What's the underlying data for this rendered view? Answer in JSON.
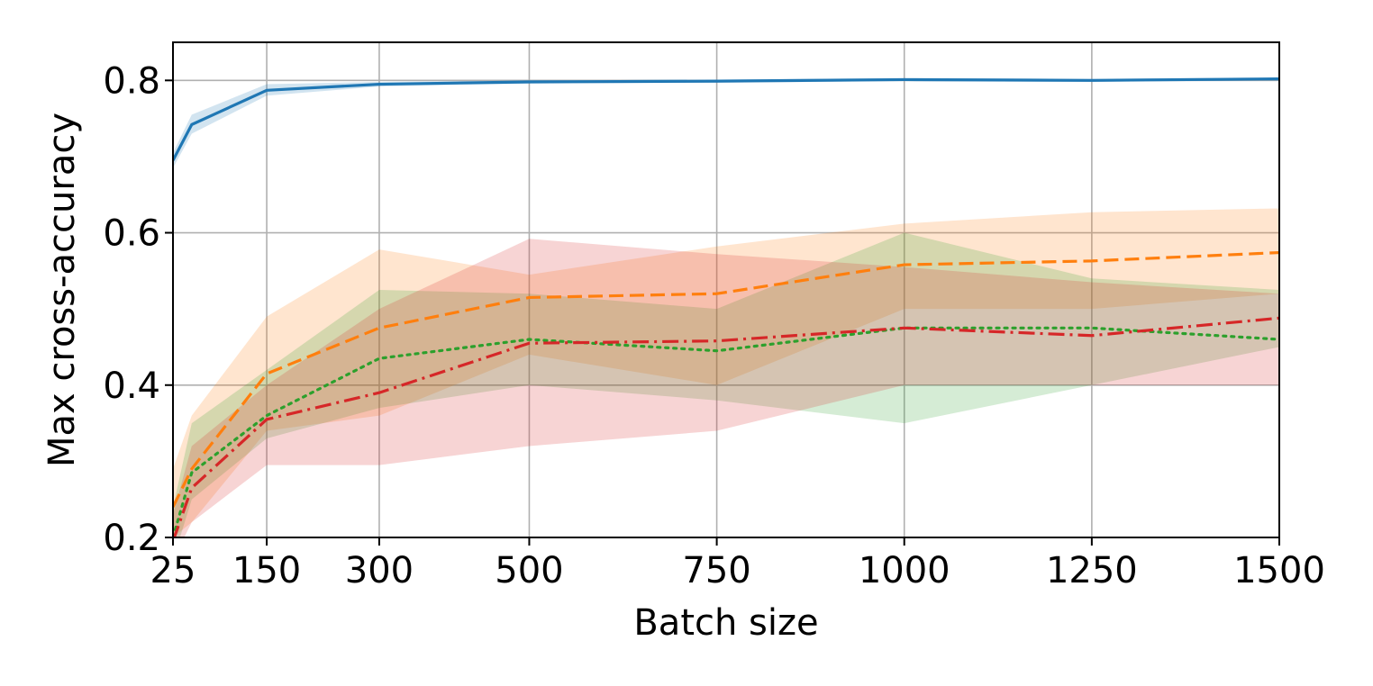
{
  "chart_data": {
    "type": "line",
    "xlabel": "Batch size",
    "ylabel": "Max cross-accuracy",
    "xlim": [
      25,
      1500
    ],
    "ylim": [
      0.2,
      0.85
    ],
    "xticks": [
      25,
      150,
      300,
      500,
      750,
      1000,
      1250,
      1500
    ],
    "xtick_labels": [
      "25",
      "150",
      "300",
      "500",
      "750",
      "1000",
      "1250",
      "1500"
    ],
    "yticks": [
      0.2,
      0.4,
      0.6,
      0.8
    ],
    "ytick_labels": [
      "0.2",
      "0.4",
      "0.6",
      "0.8"
    ],
    "grid": true,
    "x": [
      25,
      50,
      150,
      300,
      500,
      750,
      1000,
      1250,
      1500
    ],
    "series": [
      {
        "color": "#1f77b4",
        "style": "solid",
        "values": [
          0.695,
          0.742,
          0.787,
          0.795,
          0.798,
          0.799,
          0.801,
          0.8,
          0.802
        ],
        "lower": [
          0.685,
          0.73,
          0.78,
          0.792,
          0.796,
          0.797,
          0.799,
          0.798,
          0.8
        ],
        "upper": [
          0.705,
          0.755,
          0.795,
          0.798,
          0.8,
          0.801,
          0.803,
          0.802,
          0.804
        ]
      },
      {
        "color": "#ff7f0e",
        "style": "dashed",
        "values": [
          0.24,
          0.29,
          0.415,
          0.475,
          0.515,
          0.52,
          0.558,
          0.563,
          0.574
        ],
        "lower": [
          0.2,
          0.22,
          0.34,
          0.36,
          0.44,
          0.4,
          0.5,
          0.5,
          0.52
        ],
        "upper": [
          0.29,
          0.36,
          0.49,
          0.578,
          0.545,
          0.582,
          0.612,
          0.627,
          0.632
        ]
      },
      {
        "color": "#2ca02c",
        "style": "dotted",
        "values": [
          0.2,
          0.285,
          0.36,
          0.435,
          0.46,
          0.445,
          0.475,
          0.475,
          0.46
        ],
        "lower": [
          0.17,
          0.25,
          0.33,
          0.37,
          0.4,
          0.38,
          0.35,
          0.4,
          0.45
        ],
        "upper": [
          0.24,
          0.35,
          0.42,
          0.525,
          0.52,
          0.5,
          0.6,
          0.54,
          0.525
        ]
      },
      {
        "color": "#d62728",
        "style": "dashdot",
        "values": [
          0.195,
          0.265,
          0.355,
          0.39,
          0.455,
          0.458,
          0.475,
          0.465,
          0.488
        ],
        "lower": [
          0.17,
          0.22,
          0.295,
          0.295,
          0.32,
          0.34,
          0.4,
          0.4,
          0.4
        ],
        "upper": [
          0.23,
          0.32,
          0.4,
          0.5,
          0.592,
          0.572,
          0.555,
          0.535,
          0.52
        ]
      }
    ]
  }
}
